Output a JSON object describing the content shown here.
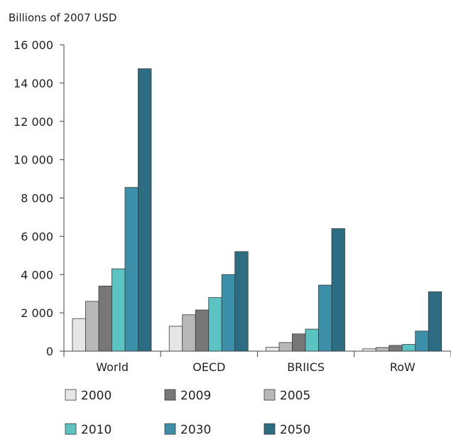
{
  "chart_data": {
    "type": "bar",
    "unit_label": "Billions of 2007 USD",
    "categories": [
      "World",
      "OECD",
      "BRIICS",
      "RoW"
    ],
    "series": [
      {
        "name": "2000",
        "color": "#e6e6e6",
        "values": [
          1700,
          1300,
          200,
          120
        ]
      },
      {
        "name": "2005",
        "color": "#b8b8b8",
        "values": [
          2600,
          1900,
          450,
          190
        ]
      },
      {
        "name": "2009",
        "color": "#777777",
        "values": [
          3400,
          2150,
          900,
          300
        ]
      },
      {
        "name": "2010",
        "color": "#5bc4c2",
        "values": [
          4300,
          2800,
          1150,
          350
        ]
      },
      {
        "name": "2030",
        "color": "#3c8fa8",
        "values": [
          8550,
          4000,
          3450,
          1050
        ]
      },
      {
        "name": "2050",
        "color": "#2d6d84",
        "values": [
          14750,
          5200,
          6400,
          3100
        ]
      }
    ],
    "ylim": [
      0,
      16000
    ],
    "yticks": [
      0,
      2000,
      4000,
      6000,
      8000,
      10000,
      12000,
      14000,
      16000
    ],
    "ytick_labels": [
      "0",
      "2 000",
      "4 000",
      "6 000",
      "8 000",
      "10 000",
      "12 000",
      "14 000",
      "16 000"
    ],
    "legend_order": [
      "2000",
      "2009",
      "2005",
      "2010",
      "2030",
      "2050"
    ],
    "legend_position": "bottom",
    "grid": false
  }
}
